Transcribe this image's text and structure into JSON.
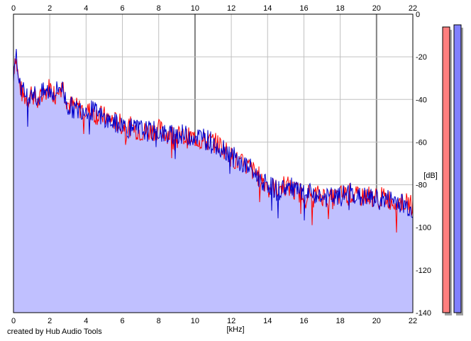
{
  "chart_data": {
    "type": "area",
    "xlabel": "[kHz]",
    "ylabel": "[dB]",
    "xlim": [
      0,
      22
    ],
    "ylim": [
      -140,
      0
    ],
    "x_ticks": [
      0,
      2,
      4,
      6,
      8,
      10,
      12,
      14,
      16,
      18,
      20,
      22
    ],
    "y_ticks": [
      0,
      -20,
      -40,
      -60,
      -80,
      -100,
      -120,
      -140
    ],
    "x_tick_labels": [
      "0",
      "2",
      "4",
      "6",
      "8",
      "10",
      "12",
      "14",
      "16",
      "18",
      "20",
      "22"
    ],
    "y_tick_labels": [
      "0",
      "-20",
      "-40",
      "-60",
      "-80",
      "-100",
      "-120",
      "-140"
    ],
    "grid": true,
    "colors": {
      "left": "#ff0000",
      "right": "#0000cc",
      "fill": "#c0c0ff",
      "grid": "#c0c0c0",
      "major_grid": "#808080"
    },
    "series": [
      {
        "channel": "left",
        "color": "#ff0000",
        "x": [
          0,
          0.1,
          0.3,
          0.5,
          0.8,
          1,
          1.3,
          1.6,
          2,
          2.3,
          2.6,
          3,
          3.5,
          4,
          4.5,
          5,
          5.5,
          6,
          6.5,
          7,
          7.5,
          8,
          8.5,
          9,
          9.5,
          10,
          10.5,
          11,
          11.5,
          12,
          12.5,
          13,
          13.5,
          14,
          14.5,
          15,
          15.5,
          16,
          16.5,
          17,
          17.5,
          18,
          18.5,
          19,
          19.5,
          20,
          20.5,
          21,
          21.5,
          22
        ],
        "y": [
          -28,
          -18,
          -32,
          -38,
          -40,
          -36,
          -42,
          -38,
          -34,
          -38,
          -30,
          -42,
          -44,
          -45,
          -47,
          -48,
          -50,
          -52,
          -53,
          -55,
          -55,
          -54,
          -56,
          -57,
          -58,
          -58,
          -60,
          -60,
          -62,
          -67,
          -70,
          -72,
          -76,
          -80,
          -82,
          -80,
          -83,
          -84,
          -85,
          -85,
          -87,
          -85,
          -84,
          -86,
          -85,
          -86,
          -86,
          -88,
          -88,
          -90
        ]
      },
      {
        "channel": "right",
        "color": "#0000cc",
        "x": [
          0,
          0.1,
          0.3,
          0.5,
          0.8,
          1,
          1.3,
          1.6,
          2,
          2.3,
          2.6,
          3,
          3.5,
          4,
          4.5,
          5,
          5.5,
          6,
          6.5,
          7,
          7.5,
          8,
          8.5,
          9,
          9.5,
          10,
          10.5,
          11,
          11.5,
          12,
          12.5,
          13,
          13.5,
          14,
          14.5,
          15,
          15.5,
          16,
          16.5,
          17,
          17.5,
          18,
          18.5,
          19,
          19.5,
          20,
          20.5,
          21,
          21.5,
          22
        ],
        "y": [
          -27,
          -17,
          -30,
          -36,
          -39,
          -35,
          -40,
          -37,
          -36,
          -37,
          -33,
          -43,
          -45,
          -44,
          -46,
          -49,
          -51,
          -52,
          -54,
          -54,
          -55,
          -55,
          -57,
          -56,
          -57,
          -57,
          -58,
          -60,
          -62,
          -66,
          -70,
          -72,
          -77,
          -79,
          -83,
          -81,
          -82,
          -85,
          -84,
          -86,
          -86,
          -86,
          -83,
          -86,
          -86,
          -87,
          -87,
          -87,
          -89,
          -92
        ]
      }
    ],
    "level_meters": [
      {
        "channel": "left",
        "color": "#ff7f7f",
        "value_db": -6
      },
      {
        "channel": "right",
        "color": "#8080ff",
        "value_db": -5
      }
    ]
  },
  "credit": "created by Hub Audio Tools"
}
